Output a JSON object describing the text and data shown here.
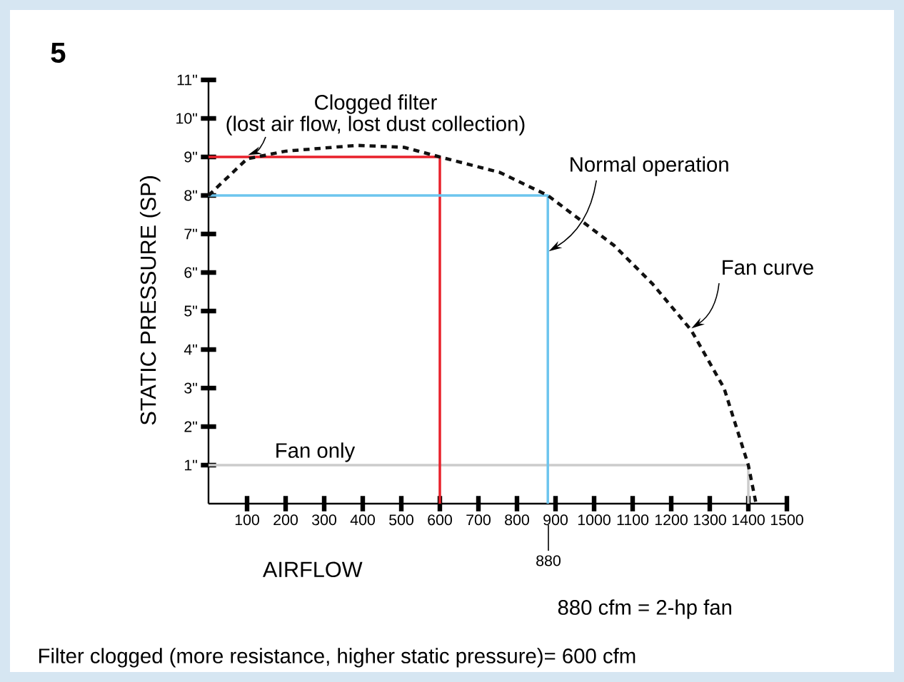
{
  "chart_data": {
    "type": "line",
    "title": "5",
    "xlabel": "AIRFLOW",
    "ylabel": "STATIC PRESSURE (SP)",
    "xlim": [
      0,
      1500
    ],
    "ylim": [
      0,
      11
    ],
    "xticks": [
      100,
      200,
      300,
      400,
      500,
      600,
      700,
      800,
      900,
      1000,
      1100,
      1200,
      1300,
      1400,
      1500
    ],
    "yticks": [
      {
        "value": 1,
        "label": "1\""
      },
      {
        "value": 2,
        "label": "2\""
      },
      {
        "value": 3,
        "label": "3\""
      },
      {
        "value": 4,
        "label": "4\""
      },
      {
        "value": 5,
        "label": "5\""
      },
      {
        "value": 6,
        "label": "6\""
      },
      {
        "value": 7,
        "label": "7\""
      },
      {
        "value": 8,
        "label": "8\""
      },
      {
        "value": 9,
        "label": "9\""
      },
      {
        "value": 10,
        "label": "10\""
      },
      {
        "value": 11,
        "label": "11\""
      }
    ],
    "series": [
      {
        "color": "#cccccc",
        "line_style": "solid",
        "x": [
          0,
          1400,
          1400
        ],
        "values": [
          1,
          1,
          0
        ]
      },
      {
        "color": "#e8202a",
        "line_style": "solid",
        "x": [
          0,
          600,
          600
        ],
        "values": [
          9,
          9,
          0
        ]
      },
      {
        "color": "#6cc5ee",
        "line_style": "solid",
        "x": [
          0,
          880,
          880
        ],
        "values": [
          8,
          8,
          0
        ]
      },
      {
        "color": "#111111",
        "line_style": "dashed",
        "x": [
          0,
          100,
          200,
          385,
          507,
          600,
          755,
          880,
          1052,
          1152,
          1252,
          1337,
          1400,
          1420
        ],
        "values": [
          8,
          8.95,
          9.15,
          9.3,
          9.25,
          9,
          8.6,
          8,
          6.7,
          5.7,
          4.5,
          3,
          1,
          0
        ]
      }
    ],
    "annotations": [
      "Clogged filter",
      {
        "text": "(lost air flow, lost dust collection)",
        "x": 100,
        "y": 9
      },
      {
        "text": "Normal operation",
        "x": 880,
        "y": 6.5
      },
      {
        "text": "Fan curve",
        "x": 1250,
        "y": 4.5
      },
      {
        "text": "Fan only",
        "x": 250,
        "y": 1
      },
      "880",
      "880 cfm = 2-hp fan",
      "Filter clogged (more resistance, higher static pressure)= 600 cfm"
    ]
  }
}
